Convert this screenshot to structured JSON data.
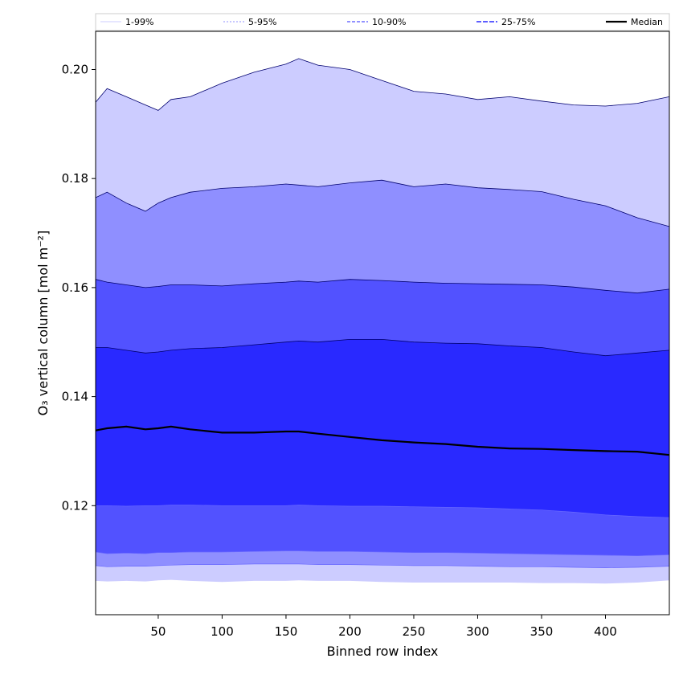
{
  "chart_data": {
    "type": "area",
    "xlabel": "Binned row index",
    "ylabel": "O₃ vertical column [mol m⁻²]",
    "xlim": [
      1,
      450
    ],
    "ylim": [
      0.1,
      0.207
    ],
    "xticks": [
      50,
      100,
      150,
      200,
      250,
      300,
      350,
      400
    ],
    "yticks": [
      0.12,
      0.14,
      0.16,
      0.18,
      0.2
    ],
    "ytick_labels": [
      "0.12",
      "0.14",
      "0.16",
      "0.18",
      "0.20"
    ],
    "grid": false,
    "legend_position": "top",
    "x": [
      1,
      10,
      25,
      40,
      50,
      60,
      75,
      100,
      125,
      150,
      160,
      175,
      200,
      225,
      250,
      275,
      300,
      325,
      350,
      375,
      400,
      425,
      450
    ],
    "bands": [
      {
        "name": "1-99%",
        "color": "#ccccff",
        "lower_index": 0,
        "upper_index": 7
      },
      {
        "name": "5-95%",
        "color": "#8f8fff",
        "lower_index": 1,
        "upper_index": 6
      },
      {
        "name": "10-90%",
        "color": "#5252ff",
        "lower_index": 2,
        "upper_index": 5
      },
      {
        "name": "25-75%",
        "color": "#2929ff",
        "lower_index": 3,
        "upper_index": 4
      }
    ],
    "series": [
      {
        "name": "p01",
        "values": [
          0.1062,
          0.1061,
          0.1062,
          0.1061,
          0.1063,
          0.1064,
          0.1062,
          0.106,
          0.1062,
          0.1062,
          0.1063,
          0.1062,
          0.1062,
          0.106,
          0.1059,
          0.1059,
          0.1059,
          0.1059,
          0.1058,
          0.1058,
          0.1057,
          0.1059,
          0.1063
        ]
      },
      {
        "name": "p05",
        "values": [
          0.109,
          0.1088,
          0.1089,
          0.1089,
          0.109,
          0.1091,
          0.1092,
          0.1092,
          0.1093,
          0.1093,
          0.1093,
          0.1092,
          0.1092,
          0.1091,
          0.109,
          0.109,
          0.1089,
          0.1088,
          0.1088,
          0.1087,
          0.1086,
          0.1087,
          0.1089
        ]
      },
      {
        "name": "p10",
        "values": [
          0.1115,
          0.1112,
          0.1113,
          0.1112,
          0.1114,
          0.1114,
          0.1115,
          0.1115,
          0.1116,
          0.1117,
          0.1117,
          0.1116,
          0.1116,
          0.1115,
          0.1114,
          0.1114,
          0.1113,
          0.1112,
          0.1111,
          0.111,
          0.1109,
          0.1108,
          0.111
        ]
      },
      {
        "name": "p25",
        "values": [
          0.12,
          0.12,
          0.1199,
          0.12,
          0.12,
          0.1201,
          0.1201,
          0.12,
          0.12,
          0.12,
          0.1201,
          0.12,
          0.1199,
          0.1199,
          0.1198,
          0.1197,
          0.1196,
          0.1194,
          0.1192,
          0.1188,
          0.1183,
          0.118,
          0.1178
        ]
      },
      {
        "name": "p75",
        "values": [
          0.149,
          0.149,
          0.1485,
          0.148,
          0.1482,
          0.1485,
          0.1488,
          0.149,
          0.1495,
          0.15,
          0.1502,
          0.15,
          0.1505,
          0.1505,
          0.15,
          0.1498,
          0.1497,
          0.1493,
          0.149,
          0.1482,
          0.1475,
          0.148,
          0.1485
        ]
      },
      {
        "name": "p90",
        "values": [
          0.1615,
          0.161,
          0.1605,
          0.16,
          0.1602,
          0.1605,
          0.1605,
          0.1603,
          0.1607,
          0.161,
          0.1612,
          0.161,
          0.1615,
          0.1613,
          0.161,
          0.1608,
          0.1607,
          0.1606,
          0.1605,
          0.1601,
          0.1595,
          0.159,
          0.1597
        ]
      },
      {
        "name": "p95",
        "values": [
          0.1765,
          0.1775,
          0.1755,
          0.174,
          0.1755,
          0.1765,
          0.1775,
          0.1782,
          0.1785,
          0.179,
          0.1788,
          0.1785,
          0.1792,
          0.1797,
          0.1785,
          0.179,
          0.1783,
          0.178,
          0.1776,
          0.1762,
          0.175,
          0.1728,
          0.1712
        ]
      },
      {
        "name": "p99",
        "values": [
          0.194,
          0.1965,
          0.195,
          0.1935,
          0.1925,
          0.1945,
          0.195,
          0.1975,
          0.1995,
          0.201,
          0.202,
          0.2008,
          0.2,
          0.198,
          0.196,
          0.1955,
          0.1945,
          0.195,
          0.1942,
          0.1935,
          0.1933,
          0.1938,
          0.195
        ]
      },
      {
        "name": "Median",
        "values": [
          0.1338,
          0.1342,
          0.1345,
          0.134,
          0.1342,
          0.1345,
          0.134,
          0.1334,
          0.1334,
          0.1336,
          0.1336,
          0.1332,
          0.1326,
          0.132,
          0.1316,
          0.1313,
          0.1308,
          0.1305,
          0.1304,
          0.1302,
          0.13,
          0.1299,
          0.1293
        ]
      }
    ],
    "legend": [
      {
        "label": "1-99%",
        "color": "#ccccff",
        "dash": "none",
        "width": 1
      },
      {
        "label": "5-95%",
        "color": "#8f8fff",
        "dash": "2,2",
        "width": 1
      },
      {
        "label": "10-90%",
        "color": "#5252ff",
        "dash": "4,2",
        "width": 1.2
      },
      {
        "label": "25-75%",
        "color": "#2929ff",
        "dash": "6,2",
        "width": 1.5
      },
      {
        "label": "Median",
        "color": "#000000",
        "dash": "none",
        "width": 2.2
      }
    ]
  }
}
